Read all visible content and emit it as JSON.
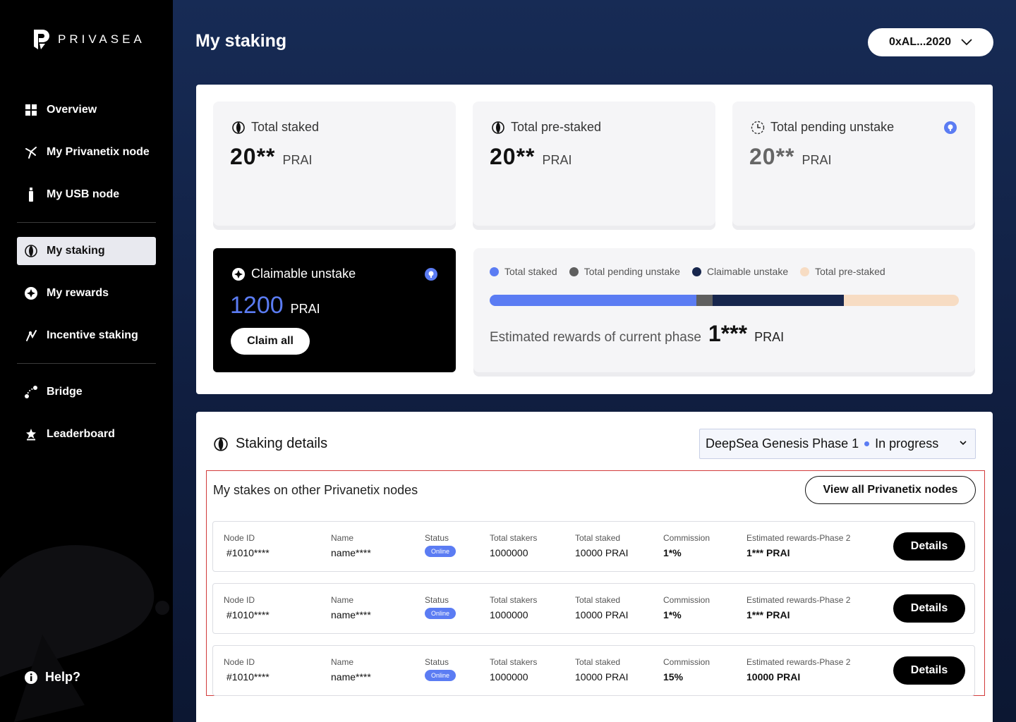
{
  "brand": {
    "name": "PRIVASEA"
  },
  "sidebar": {
    "items": [
      {
        "label": "Overview",
        "icon": "grid-icon"
      },
      {
        "label": "My Privanetix node",
        "icon": "node-icon"
      },
      {
        "label": "My USB node",
        "icon": "usb-icon"
      },
      {
        "label": "My staking",
        "icon": "staking-icon",
        "active": true
      },
      {
        "label": "My rewards",
        "icon": "rewards-icon"
      },
      {
        "label": "Incentive staking",
        "icon": "incentive-icon"
      },
      {
        "label": "Bridge",
        "icon": "bridge-icon"
      },
      {
        "label": "Leaderboard",
        "icon": "leaderboard-icon"
      }
    ],
    "help": "Help?"
  },
  "header": {
    "title": "My staking",
    "wallet": "0xAL...2020"
  },
  "summary": {
    "total_staked": {
      "label": "Total staked",
      "value": "20**",
      "unit": "PRAI"
    },
    "total_pre_staked": {
      "label": "Total pre-staked",
      "value": "20**",
      "unit": "PRAI"
    },
    "total_pending_unstake": {
      "label": "Total pending unstake",
      "value": "20**",
      "unit": "PRAI"
    },
    "claimable": {
      "label": "Claimable unstake",
      "value": "1200",
      "unit": "PRAI",
      "button": "Claim all"
    }
  },
  "distribution": {
    "legend": [
      {
        "label": "Total staked",
        "color": "#5b7cf3"
      },
      {
        "label": "Total pending unstake",
        "color": "#5f5f5f"
      },
      {
        "label": "Claimable unstake",
        "color": "#17264d"
      },
      {
        "label": "Total pre-staked",
        "color": "#f7dcc3"
      }
    ],
    "segments": [
      0.44,
      0.035,
      0.28,
      0.245
    ],
    "estimated_label": "Estimated rewards of current phase",
    "estimated_value": "1***",
    "estimated_unit": "PRAI"
  },
  "details": {
    "title": "Staking details",
    "phase_name": "DeepSea Genesis Phase 1",
    "phase_status": "In progress",
    "subtitle": "My stakes on other Privanetix nodes",
    "view_all": "View all Privanetix nodes",
    "headers": {
      "node_id": "Node ID",
      "name": "Name",
      "status": "Status",
      "total_stakers": "Total stakers",
      "total_staked": "Total staked",
      "commission": "Commission",
      "est_rewards": "Estimated rewards-Phase 2"
    },
    "rows": [
      {
        "node_id": "#1010****",
        "name": "name****",
        "status": "Online",
        "total_stakers": "1000000",
        "total_staked": "10000 PRAI",
        "commission": "1*%",
        "est_rewards": "1*** PRAI",
        "button": "Details"
      },
      {
        "node_id": "#1010****",
        "name": "name****",
        "status": "Online",
        "total_stakers": "1000000",
        "total_staked": "10000 PRAI",
        "commission": "1*%",
        "est_rewards": "1*** PRAI",
        "button": "Details"
      },
      {
        "node_id": "#1010****",
        "name": "name****",
        "status": "Online",
        "total_stakers": "1000000",
        "total_staked": "10000 PRAI",
        "commission": "15%",
        "est_rewards": "10000 PRAI",
        "button": "Details"
      }
    ]
  }
}
